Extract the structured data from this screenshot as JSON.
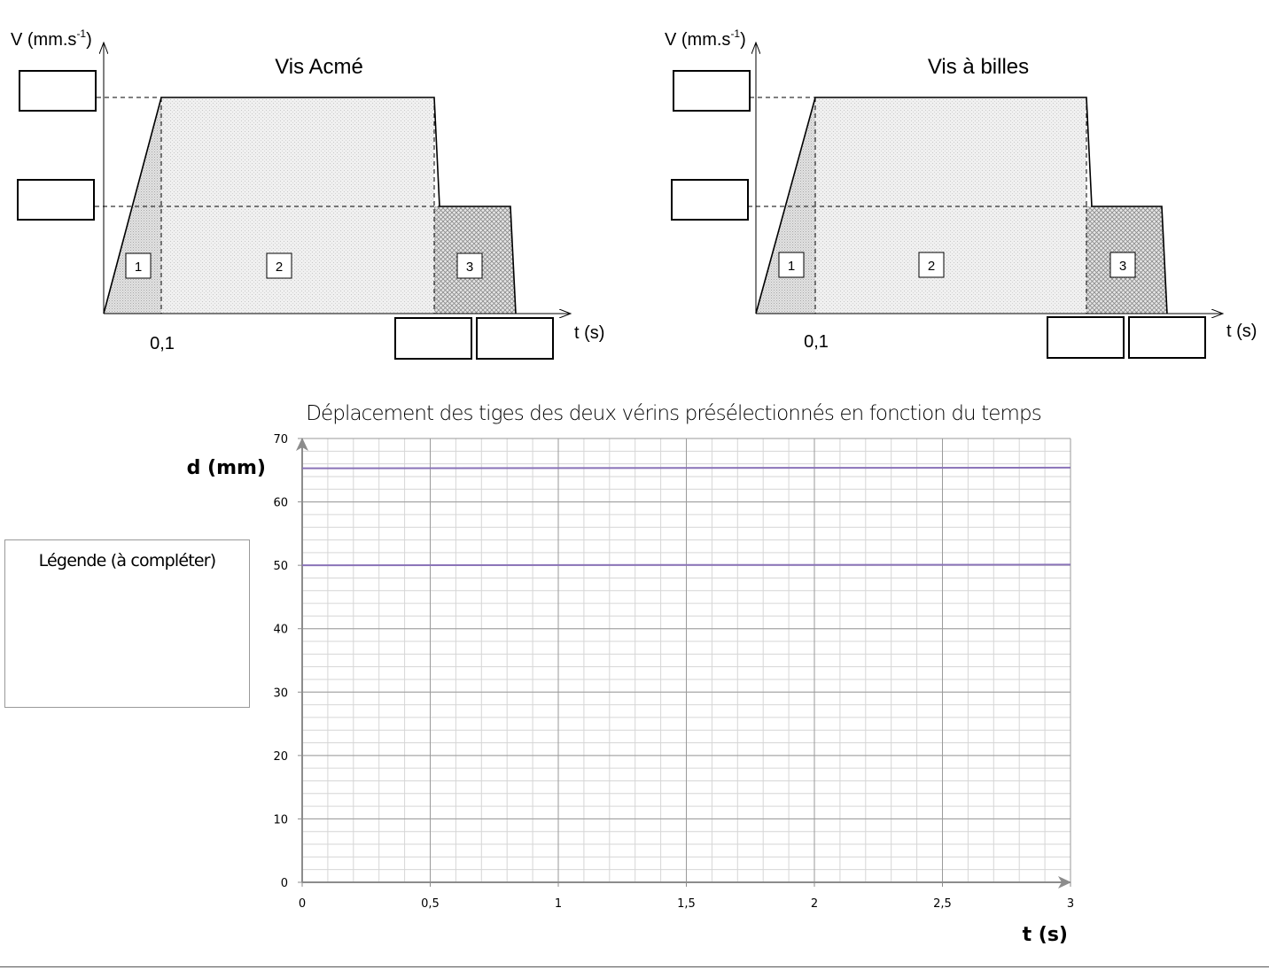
{
  "charts_top": [
    {
      "title": "Vis Acmé",
      "ylabel": "V (mm.s",
      "ylabel_exp": "-1",
      "ylabel_close": ")",
      "xlabel": "t (s)",
      "tick_label": "0,1",
      "zones": [
        "1",
        "2",
        "3"
      ]
    },
    {
      "title": "Vis à billes",
      "ylabel": "V (mm.s",
      "ylabel_exp": "-1",
      "ylabel_close": ")",
      "xlabel": "t (s)",
      "tick_label": "0,1",
      "zones": [
        "1",
        "2",
        "3"
      ]
    }
  ],
  "legend": {
    "title": "Légende (à compléter)"
  },
  "chart_data": {
    "type": "line",
    "title": "Déplacement des tiges des deux vérins présélectionnés en fonction du temps",
    "xlabel": "t (s)",
    "ylabel": "d (mm)",
    "xlim": [
      0,
      3
    ],
    "ylim": [
      0,
      70
    ],
    "x_ticks": [
      "0",
      "0,5",
      "1",
      "1,5",
      "2",
      "2,5",
      "3"
    ],
    "x_tick_values": [
      0,
      0.5,
      1,
      1.5,
      2,
      2.5,
      3
    ],
    "y_ticks": [
      "0",
      "10",
      "20",
      "30",
      "40",
      "50",
      "60",
      "70"
    ],
    "y_tick_values": [
      0,
      10,
      20,
      30,
      40,
      50,
      60,
      70
    ],
    "grid": true,
    "minor_x_step": 0.1,
    "minor_y_step": 2,
    "series": [
      {
        "x": [
          0,
          3
        ],
        "y": [
          65.3,
          65.4
        ],
        "color": "#8a73b8"
      },
      {
        "x": [
          0,
          3
        ],
        "y": [
          50.0,
          50.1
        ],
        "color": "#8a73b8"
      }
    ]
  }
}
